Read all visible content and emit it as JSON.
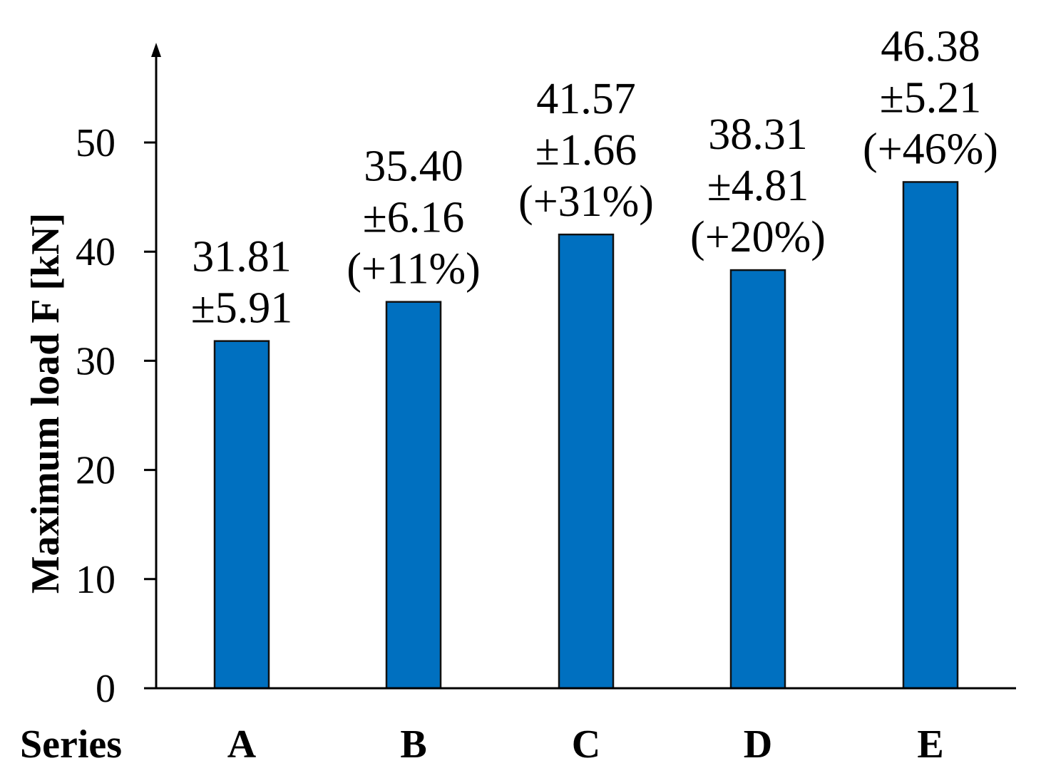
{
  "chart_data": {
    "type": "bar",
    "title": "",
    "xlabel": "Series",
    "ylabel": "Maximum load F [kN]",
    "ylim": [
      0,
      50
    ],
    "yticks": [
      "0",
      "10",
      "20",
      "30",
      "40",
      "50"
    ],
    "grid": false,
    "categories": [
      "A",
      "B",
      "C",
      "D",
      "E"
    ],
    "values": [
      31.81,
      35.4,
      41.57,
      38.31,
      46.38
    ],
    "std": [
      5.91,
      6.16,
      1.66,
      4.81,
      5.21
    ],
    "data_labels": [
      {
        "value": "31.81",
        "std": "±5.91",
        "change": ""
      },
      {
        "value": "35.40",
        "std": "±6.16",
        "change": "(+11%)"
      },
      {
        "value": "41.57",
        "std": "±1.66",
        "change": "(+31%)"
      },
      {
        "value": "38.31",
        "std": "±4.81",
        "change": "(+20%)"
      },
      {
        "value": "46.38",
        "std": "±5.21",
        "change": "(+46%)"
      }
    ],
    "bar_color": "#0070C0"
  }
}
